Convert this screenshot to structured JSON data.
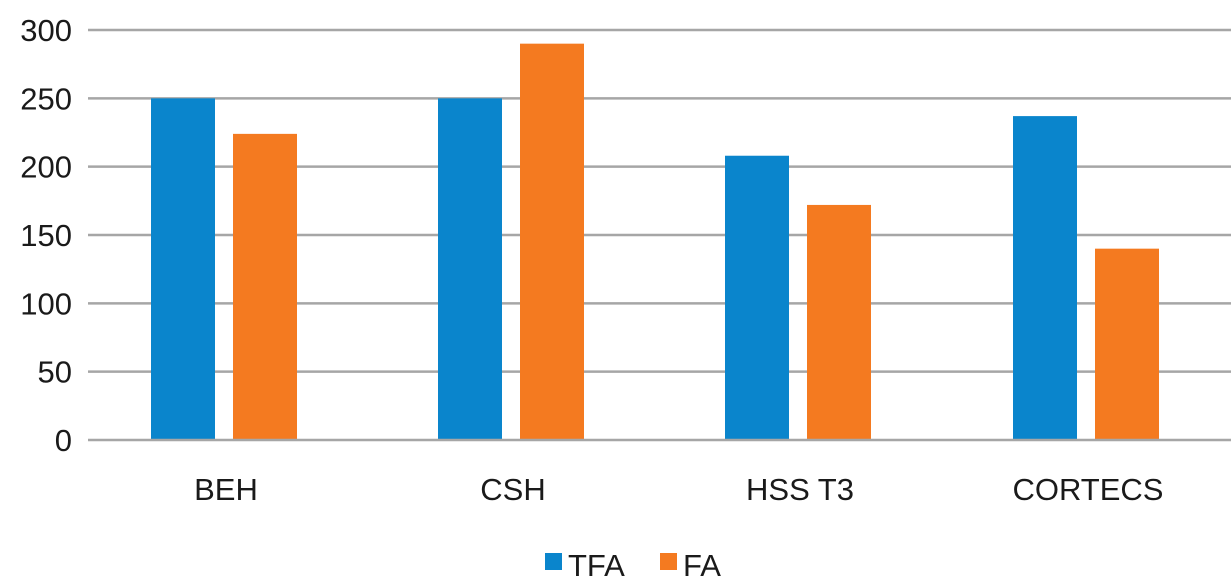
{
  "chart_data": {
    "type": "bar",
    "categories": [
      "BEH",
      "CSH",
      "HSS T3",
      "CORTECS"
    ],
    "series": [
      {
        "name": "TFA",
        "values": [
          250,
          250,
          208,
          237
        ],
        "color": "#0a85cc"
      },
      {
        "name": "FA",
        "values": [
          224,
          290,
          172,
          140
        ],
        "color": "#f47a20"
      }
    ],
    "ylim": [
      0,
      300
    ],
    "yticks": [
      0,
      50,
      100,
      150,
      200,
      250,
      300
    ],
    "grid": true,
    "legend_position": "bottom-center",
    "title": "",
    "xlabel": "",
    "ylabel": ""
  }
}
